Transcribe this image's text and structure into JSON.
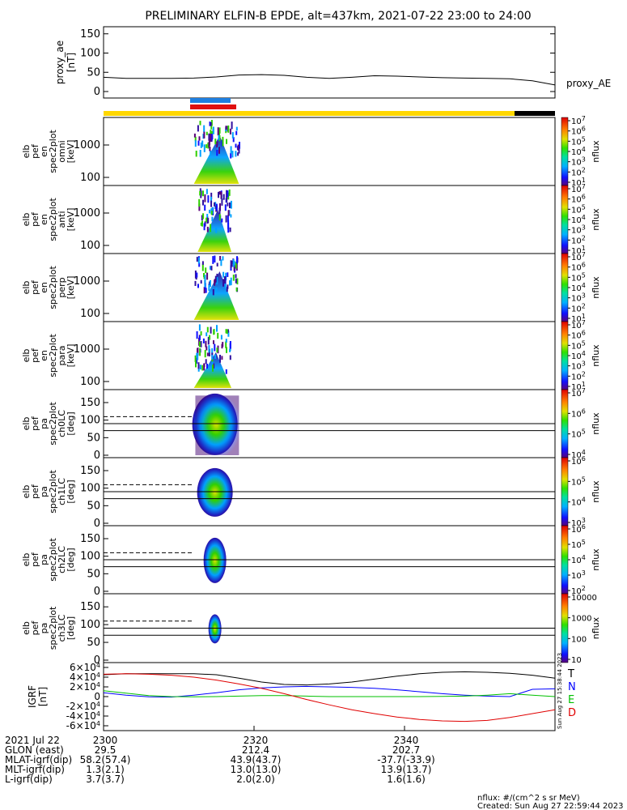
{
  "title": "PRELIMINARY ELFIN-B EPDE, alt=437km, 2021-07-22 23:00 to 24:00",
  "colors": {
    "orbit_bar": "#ffd700",
    "orbit_bar_end": "#000000",
    "science_blue": "#1f7fe0",
    "science_red": "#e01010",
    "T": "#000000",
    "N": "#0000ff",
    "E": "#00c000",
    "D": "#e00000"
  },
  "chart_data": [
    {
      "type": "line",
      "panel": "proxy_ae",
      "ylabel": "proxy_ae [nT]",
      "ylim": [
        0,
        160
      ],
      "yticks": [
        "0",
        "50",
        "100",
        "150"
      ],
      "series": [
        {
          "name": "proxy_AE",
          "x": [
            0,
            3,
            6,
            9,
            12,
            15,
            18,
            21,
            24,
            27,
            30,
            33,
            36,
            39,
            42,
            45,
            48,
            51,
            54,
            57,
            60
          ],
          "y": [
            37,
            34,
            34,
            34,
            35,
            38,
            43,
            44,
            42,
            37,
            34,
            37,
            41,
            40,
            38,
            36,
            35,
            34,
            33,
            28,
            17
          ]
        }
      ]
    },
    {
      "type": "heatmap",
      "panel": "en_spec2plot_omni",
      "ylabel": [
        "elb",
        "pef",
        "en",
        "spec2plot",
        "omni",
        "[keV]"
      ],
      "yticks": [
        "100",
        "1000"
      ],
      "colorbar_ticks": [
        "10<sup>1</sup>",
        "10<sup>2</sup>",
        "10<sup>3</sup>",
        "10<sup>4</sup>",
        "10<sup>5</sup>",
        "10<sup>6</sup>",
        "10<sup>7</sup>"
      ],
      "colorbar_label": "nflux",
      "active_minutes": [
        12.0,
        18.0
      ]
    },
    {
      "type": "heatmap",
      "panel": "en_spec2plot_anti",
      "ylabel": [
        "elb",
        "pef",
        "en",
        "spec2plot",
        "anti",
        "[keV]"
      ],
      "yticks": [
        "100",
        "1000"
      ],
      "colorbar_ticks": [
        "10<sup>1</sup>",
        "10<sup>2</sup>",
        "10<sup>3</sup>",
        "10<sup>4</sup>",
        "10<sup>5</sup>",
        "10<sup>6</sup>",
        "10<sup>7</sup>"
      ],
      "colorbar_label": "nflux",
      "active_minutes": [
        12.5,
        17.0
      ]
    },
    {
      "type": "heatmap",
      "panel": "en_spec2plot_perp",
      "ylabel": [
        "elb",
        "pef",
        "en",
        "spec2plot",
        "perp",
        "[keV]"
      ],
      "yticks": [
        "100",
        "1000"
      ],
      "colorbar_ticks": [
        "10<sup>1</sup>",
        "10<sup>2</sup>",
        "10<sup>3</sup>",
        "10<sup>4</sup>",
        "10<sup>5</sup>",
        "10<sup>6</sup>",
        "10<sup>7</sup>"
      ],
      "colorbar_label": "nflux",
      "active_minutes": [
        12.0,
        18.0
      ]
    },
    {
      "type": "heatmap",
      "panel": "en_spec2plot_para",
      "ylabel": [
        "elb",
        "pef",
        "en",
        "spec2plot",
        "para",
        "[keV]"
      ],
      "yticks": [
        "100",
        "1000"
      ],
      "colorbar_ticks": [
        "10<sup>1</sup>",
        "10<sup>2</sup>",
        "10<sup>3</sup>",
        "10<sup>4</sup>",
        "10<sup>5</sup>",
        "10<sup>6</sup>",
        "10<sup>7</sup>"
      ],
      "colorbar_label": "nflux",
      "active_minutes": [
        12.0,
        17.0
      ]
    },
    {
      "type": "heatmap",
      "panel": "pa_spec2plot_ch0LC",
      "ylabel": [
        "elb",
        "pef",
        "pa",
        "spec2plot",
        "ch0LC",
        "[deg]"
      ],
      "ylim": [
        0,
        180
      ],
      "yticks": [
        "0",
        "50",
        "100",
        "150"
      ],
      "colorbar_ticks": [
        "10<sup>4</sup>",
        "10<sup>5</sup>",
        "10<sup>6</sup>",
        "10<sup>7</sup>"
      ],
      "colorbar_label": "nflux",
      "loss_cone_deg": [
        70,
        90,
        110
      ]
    },
    {
      "type": "heatmap",
      "panel": "pa_spec2plot_ch1LC",
      "ylabel": [
        "elb",
        "pef",
        "pa",
        "spec2plot",
        "ch1LC",
        "[deg]"
      ],
      "ylim": [
        0,
        180
      ],
      "yticks": [
        "0",
        "50",
        "100",
        "150"
      ],
      "colorbar_ticks": [
        "10<sup>3</sup>",
        "10<sup>4</sup>",
        "10<sup>5</sup>",
        "10<sup>6</sup>"
      ],
      "colorbar_label": "nflux",
      "loss_cone_deg": [
        70,
        90,
        110
      ]
    },
    {
      "type": "heatmap",
      "panel": "pa_spec2plot_ch2LC",
      "ylabel": [
        "elb",
        "pef",
        "pa",
        "spec2plot",
        "ch2LC",
        "[deg]"
      ],
      "ylim": [
        0,
        180
      ],
      "yticks": [
        "0",
        "50",
        "100",
        "150"
      ],
      "colorbar_ticks": [
        "10<sup>2</sup>",
        "10<sup>3</sup>",
        "10<sup>4</sup>",
        "10<sup>5</sup>",
        "10<sup>6</sup>"
      ],
      "colorbar_label": "nflux",
      "loss_cone_deg": [
        70,
        90,
        110
      ]
    },
    {
      "type": "heatmap",
      "panel": "pa_spec2plot_ch3LC",
      "ylabel": [
        "elb",
        "pef",
        "pa",
        "spec2plot",
        "ch3LC",
        "[deg]"
      ],
      "ylim": [
        0,
        180
      ],
      "yticks": [
        "0",
        "50",
        "100",
        "150"
      ],
      "colorbar_ticks": [
        "10",
        "100",
        "1000",
        "10000"
      ],
      "colorbar_label": "nflux",
      "loss_cone_deg": [
        70,
        90,
        110
      ]
    },
    {
      "type": "line",
      "panel": "IGRF",
      "ylabel": "IGRF [nT]",
      "ylim": [
        -60000,
        60000
      ],
      "yticks": [
        "-6×10<sup>4</sup>",
        "-4×10<sup>4</sup>",
        "-2×10<sup>4</sup>",
        "0",
        "2×10<sup>4</sup>",
        "4×10<sup>4</sup>",
        "6×10<sup>4</sup>"
      ],
      "stamp": "Sun Aug 27 15:38:44 2023",
      "x": [
        0,
        3,
        6,
        9,
        12,
        15,
        18,
        21,
        24,
        27,
        30,
        33,
        36,
        39,
        42,
        45,
        48,
        51,
        54,
        57,
        60
      ],
      "series": [
        {
          "name": "T",
          "y": [
            45000,
            47000,
            47000,
            47000,
            47000,
            45000,
            38000,
            30000,
            25000,
            24000,
            26000,
            30000,
            36000,
            42000,
            47000,
            50000,
            51000,
            50000,
            48000,
            44000,
            38000
          ]
        },
        {
          "name": "N",
          "y": [
            8000,
            3000,
            -500,
            -1000,
            3000,
            8000,
            14000,
            18000,
            20000,
            21000,
            20000,
            19000,
            17000,
            14000,
            10000,
            6000,
            3000,
            1000,
            0,
            15000,
            16000
          ]
        },
        {
          "name": "E",
          "y": [
            12000,
            7000,
            2000,
            0,
            -500,
            0,
            1000,
            2000,
            2000,
            1000,
            0,
            0,
            0,
            0,
            0,
            500,
            1000,
            3000,
            6000,
            3000,
            0
          ]
        },
        {
          "name": "D",
          "y": [
            46000,
            47000,
            46000,
            44000,
            40000,
            34000,
            26000,
            17000,
            6000,
            -6000,
            -17000,
            -27000,
            -35000,
            -42000,
            -47000,
            -50000,
            -51000,
            -49000,
            -43000,
            -35000,
            -27000
          ]
        }
      ]
    }
  ],
  "time_axis": {
    "ticks": [
      "2300",
      "2320",
      "2340"
    ],
    "rows": [
      {
        "label": "2021 Jul 22",
        "values": [
          "2300",
          "",
          ""
        ]
      },
      {
        "label": "GLON (east)",
        "values": [
          "29.5",
          "212.4",
          "202.7"
        ]
      },
      {
        "label": "MLAT-igrf(dip)",
        "values": [
          "58.2(57.4)",
          "43.9(43.7)",
          "-37.7(-33.9)"
        ]
      },
      {
        "label": "MLT-igrf(dip)",
        "values": [
          "1.3(2.1)",
          "13.0(13.0)",
          "13.9(13.7)"
        ]
      },
      {
        "label": "L-igrf(dip)",
        "values": [
          "3.7(3.7)",
          "2.0(2.0)",
          "1.6(1.6)"
        ]
      }
    ]
  },
  "footer": {
    "units": "nflux: #/(cm^2 s sr MeV)",
    "created": "Created: Sun Aug 27 22:59:44 2023"
  }
}
